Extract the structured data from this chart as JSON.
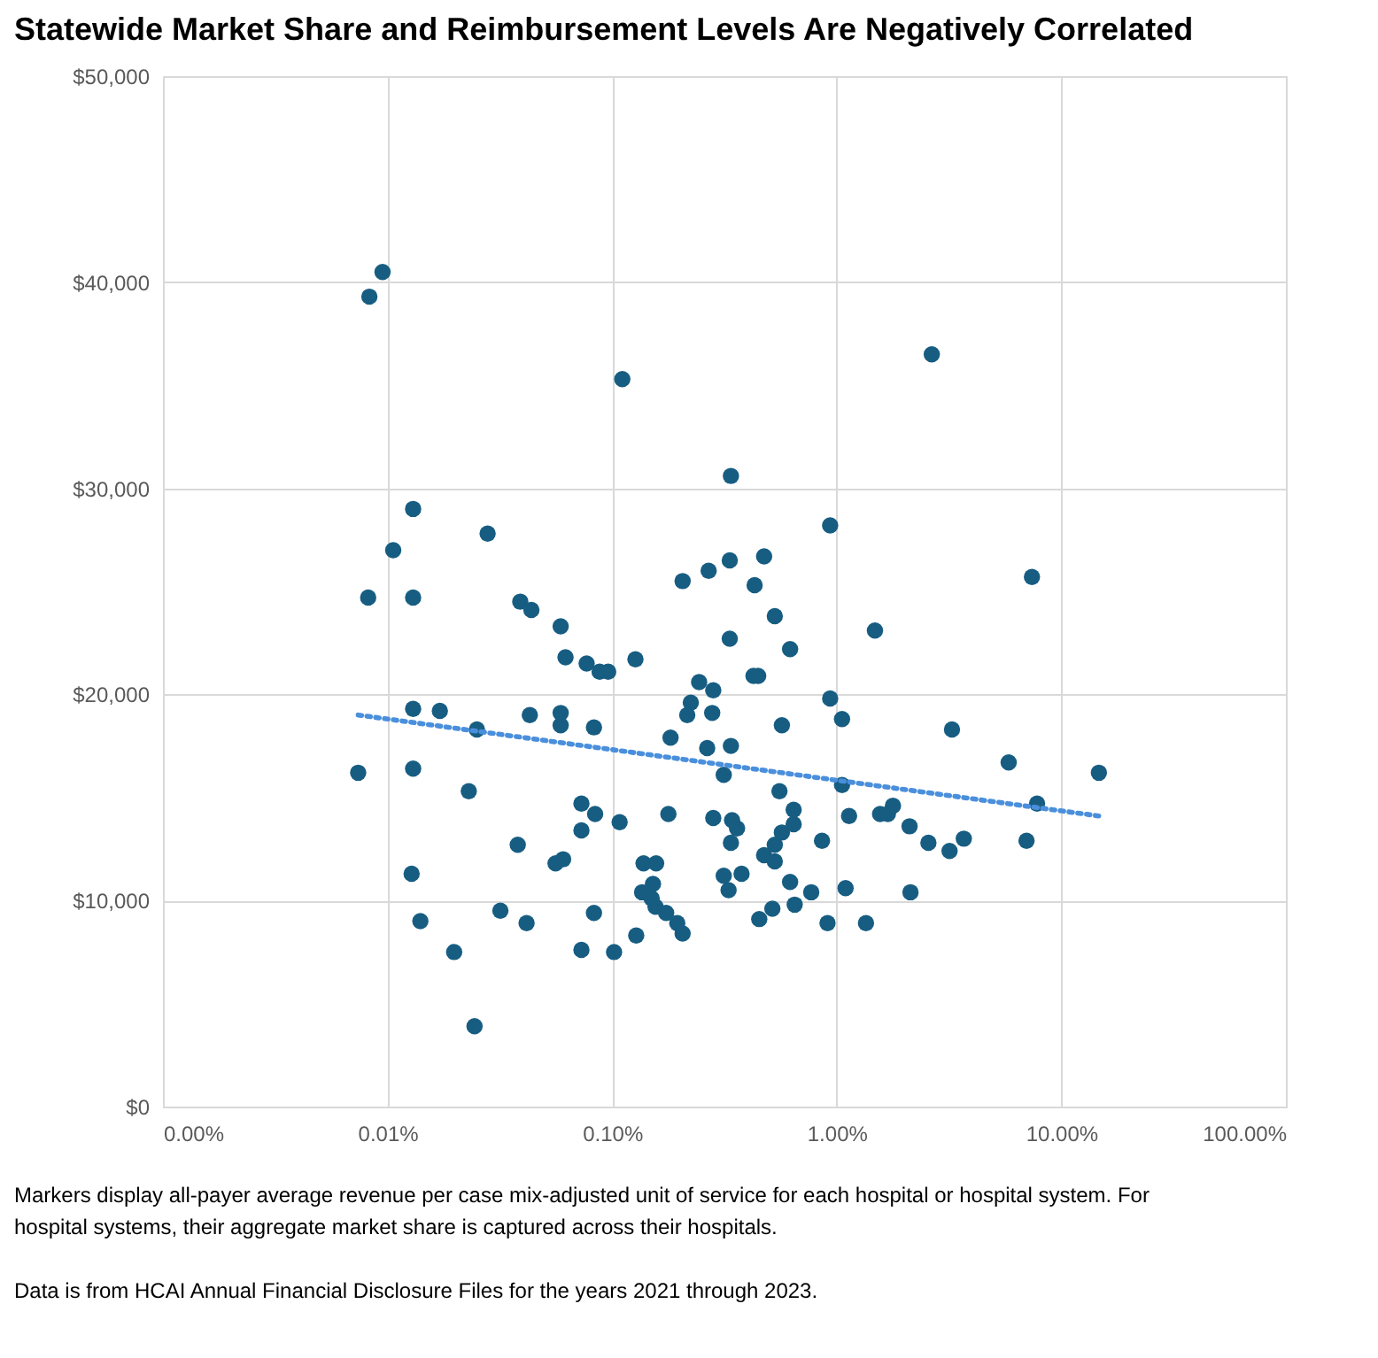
{
  "chart_data": {
    "type": "scatter",
    "title": "Statewide Market Share and Reimbursement Levels Are Negatively Correlated",
    "annotations": [
      "Markers display all-payer average revenue per case mix-adjusted unit of service for each hospital or hospital system. For hospital systems, their aggregate market share is captured across their hospitals.",
      "Data is from HCAI Annual Financial Disclosure Files for the years 2021 through 2023."
    ],
    "log": "x",
    "grid": true,
    "xlim": [
      0.001,
      100
    ],
    "xticks": [
      {
        "value": 0.001,
        "label": "0.00%"
      },
      {
        "value": 0.01,
        "label": "0.01%"
      },
      {
        "value": 0.1,
        "label": "0.10%"
      },
      {
        "value": 1,
        "label": "1.00%"
      },
      {
        "value": 10,
        "label": "10.00%"
      },
      {
        "value": 100,
        "label": "100.00%"
      }
    ],
    "ylim": [
      0,
      50000
    ],
    "yticks": [
      {
        "value": 0,
        "label": "$0"
      },
      {
        "value": 10000,
        "label": "$10,000"
      },
      {
        "value": 20000,
        "label": "$20,000"
      },
      {
        "value": 30000,
        "label": "$30,000"
      },
      {
        "value": 40000,
        "label": "$40,000"
      },
      {
        "value": 50000,
        "label": "$50,000"
      }
    ],
    "series": [
      {
        "marker": "circle",
        "color": "#175d82",
        "x": [
          0.0074,
          0.0095,
          0.0083,
          0.111,
          0.013,
          0.0106,
          0.0279,
          0.0082,
          0.013,
          0.039,
          0.0437,
          0.059,
          0.062,
          0.077,
          0.088,
          0.096,
          0.127,
          0.013,
          0.0171,
          0.025,
          0.043,
          0.059,
          0.059,
          0.083,
          0.182,
          0.013,
          0.023,
          0.073,
          0.084,
          0.108,
          0.073,
          0.178,
          0.038,
          0.056,
          0.0605,
          0.138,
          0.157,
          0.0128,
          0.152,
          0.136,
          0.15,
          0.156,
          0.174,
          0.195,
          0.206,
          0.0318,
          0.014,
          0.0416,
          0.083,
          0.0198,
          0.073,
          0.102,
          0.128,
          0.0244,
          2.65,
          0.338,
          0.935,
          0.475,
          0.334,
          0.269,
          0.206,
          0.431,
          0.53,
          1.48,
          0.334,
          0.62,
          0.426,
          0.447,
          0.244,
          0.282,
          0.224,
          0.216,
          0.279,
          0.935,
          1.056,
          0.57,
          0.265,
          0.338,
          3.26,
          5.83,
          0.314,
          1.056,
          0.556,
          0.282,
          0.342,
          0.36,
          0.338,
          0.643,
          0.643,
          0.57,
          0.86,
          1.135,
          1.56,
          1.69,
          1.78,
          2.11,
          2.56,
          3.18,
          3.68,
          0.53,
          0.53,
          0.475,
          0.314,
          0.377,
          0.33,
          0.62,
          0.77,
          1.095,
          2.13,
          0.452,
          0.517,
          0.65,
          0.91,
          1.35,
          7.4,
          14.7,
          7.8,
          7.0
        ],
        "values": [
          16200,
          40500,
          39300,
          35300,
          29000,
          27000,
          27800,
          24700,
          24700,
          24500,
          24100,
          23300,
          21800,
          21500,
          21100,
          21100,
          21700,
          19300,
          19200,
          18300,
          19000,
          19100,
          18500,
          18400,
          17900,
          16400,
          15300,
          14700,
          14200,
          13800,
          13400,
          14200,
          12700,
          11800,
          12000,
          11800,
          11800,
          11300,
          10800,
          10400,
          10100,
          9700,
          9400,
          8900,
          8400,
          9500,
          9000,
          8900,
          9400,
          7500,
          7600,
          7500,
          8300,
          3900,
          36500,
          30600,
          28200,
          26700,
          26500,
          26000,
          25500,
          25300,
          23800,
          23100,
          22700,
          22200,
          20900,
          20900,
          20600,
          20200,
          19600,
          19000,
          19100,
          19800,
          18800,
          18500,
          17400,
          17500,
          18300,
          16700,
          16100,
          15600,
          15300,
          14000,
          13900,
          13500,
          12800,
          14400,
          13700,
          13300,
          12900,
          14100,
          14200,
          14200,
          14600,
          13600,
          12800,
          12400,
          13000,
          12700,
          11900,
          12200,
          11200,
          11300,
          10500,
          10900,
          10400,
          10600,
          10400,
          9100,
          9600,
          9800,
          8900,
          8900,
          25700,
          16200,
          14700,
          12900
        ]
      },
      {
        "type": "line",
        "line_style": "dotted",
        "color": "#4a8fdc",
        "x": [
          0.0074,
          14.7
        ],
        "values": [
          19000,
          14100
        ]
      }
    ]
  }
}
